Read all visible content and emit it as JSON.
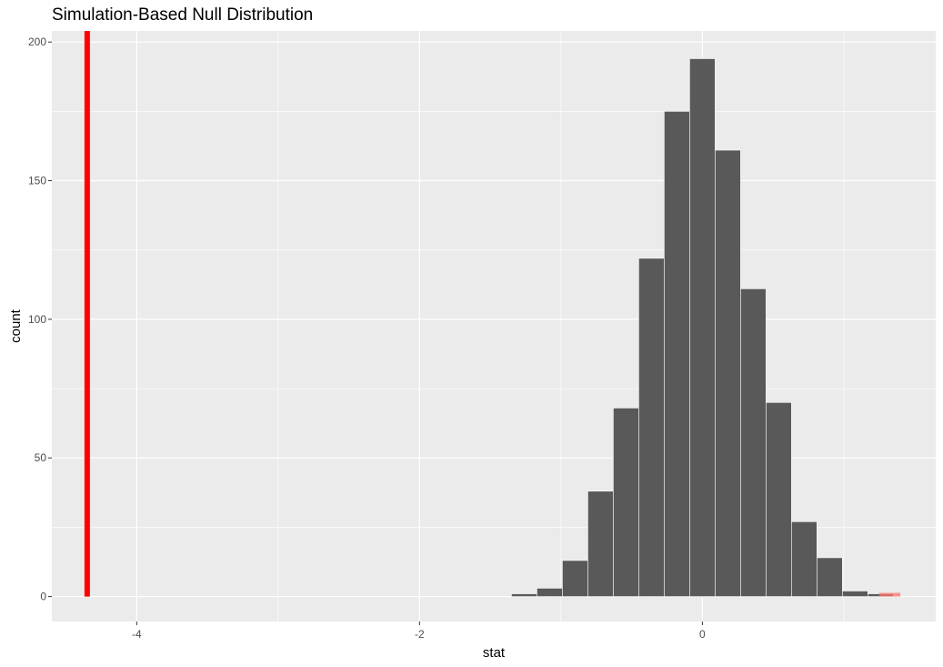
{
  "chart_data": {
    "type": "bar",
    "title": "Simulation-Based Null Distribution",
    "xlabel": "stat",
    "ylabel": "count",
    "xlim": [
      -4.6,
      1.65
    ],
    "ylim": [
      -9,
      204
    ],
    "x_ticks": [
      -4,
      -2,
      0
    ],
    "x_tick_labels": [
      "-4",
      "-2",
      "0"
    ],
    "y_ticks": [
      0,
      50,
      100,
      150,
      200
    ],
    "y_tick_labels": [
      "0",
      "50",
      "100",
      "150",
      "200"
    ],
    "grid": true,
    "legend": "none",
    "bin_width": 0.18,
    "bins": [
      {
        "x": -1.44,
        "count": 0
      },
      {
        "x": -1.26,
        "count": 1
      },
      {
        "x": -1.08,
        "count": 3
      },
      {
        "x": -0.9,
        "count": 13
      },
      {
        "x": -0.72,
        "count": 38
      },
      {
        "x": -0.54,
        "count": 68
      },
      {
        "x": -0.36,
        "count": 122
      },
      {
        "x": -0.18,
        "count": 175
      },
      {
        "x": 0.0,
        "count": 194
      },
      {
        "x": 0.18,
        "count": 161
      },
      {
        "x": 0.36,
        "count": 111
      },
      {
        "x": 0.54,
        "count": 70
      },
      {
        "x": 0.72,
        "count": 27
      },
      {
        "x": 0.9,
        "count": 14
      },
      {
        "x": 1.08,
        "count": 2
      },
      {
        "x": 1.26,
        "count": 1
      }
    ],
    "shaded_region": {
      "from": 1.25,
      "to": 1.4,
      "color": "#f8766d"
    },
    "observed_stat": {
      "x": -4.35,
      "color": "#ff0000"
    },
    "colors": {
      "panel_background": "#ebebeb",
      "grid_major": "#ffffff",
      "bar_fill": "#595959",
      "bar_outline": "#ffffff"
    }
  }
}
